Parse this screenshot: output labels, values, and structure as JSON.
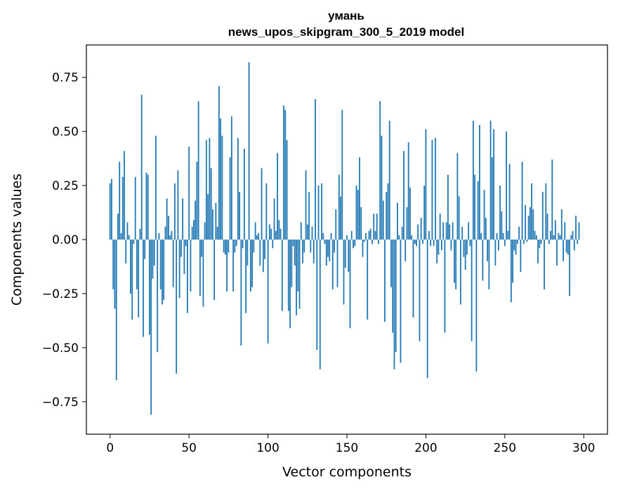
{
  "chart_data": {
    "type": "bar",
    "title": "умань",
    "subtitle": "news_upos_skipgram_300_5_2019 model",
    "xlabel": "Vector components",
    "ylabel": "Components values",
    "xlim": [
      -15,
      315
    ],
    "ylim": [
      -0.9,
      0.9
    ],
    "xticks": [
      0,
      50,
      100,
      150,
      200,
      250,
      300
    ],
    "yticks": [
      -0.75,
      -0.5,
      -0.25,
      0.0,
      0.25,
      0.5,
      0.75
    ],
    "xtick_labels": [
      "0",
      "50",
      "100",
      "150",
      "200",
      "250",
      "300"
    ],
    "ytick_labels": [
      "−0.75",
      "−0.50",
      "−0.25",
      "0.00",
      "0.25",
      "0.50",
      "0.75"
    ],
    "grid": false,
    "bar_color": "#1f77b4",
    "x_start": 0,
    "values": [
      0.26,
      0.28,
      -0.23,
      -0.32,
      -0.65,
      0.12,
      0.36,
      0.03,
      0.29,
      0.41,
      -0.11,
      0.08,
      0.02,
      -0.25,
      -0.37,
      -0.02,
      0.29,
      -0.23,
      -0.36,
      0.05,
      0.67,
      -0.45,
      -0.09,
      0.31,
      0.3,
      -0.44,
      -0.81,
      -0.18,
      -0.12,
      0.48,
      -0.52,
      0.03,
      -0.23,
      -0.3,
      -0.28,
      0.06,
      0.19,
      0.11,
      0.02,
      0.04,
      -0.22,
      0.26,
      -0.62,
      0.32,
      -0.27,
      -0.08,
      0.19,
      -0.16,
      -0.03,
      -0.34,
      0.43,
      -0.24,
      0.06,
      0.09,
      0.18,
      0.36,
      0.64,
      -0.26,
      -0.08,
      -0.31,
      0.08,
      0.46,
      0.21,
      0.47,
      0.33,
      0.14,
      -0.28,
      0.17,
      0.06,
      0.71,
      0.56,
      0.48,
      -0.06,
      -0.07,
      -0.24,
      -0.06,
      0.38,
      0.57,
      -0.24,
      -0.06,
      -0.03,
      0.47,
      0.22,
      -0.49,
      -0.04,
      0.42,
      -0.34,
      -0.12,
      0.82,
      -0.24,
      -0.22,
      -0.06,
      0.08,
      0.02,
      0.03,
      -0.12,
      0.33,
      -0.15,
      -0.09,
      0.26,
      -0.48,
      0.07,
      0.05,
      -0.04,
      0.19,
      0.04,
      0.4,
      0.09,
      0.05,
      -0.33,
      0.62,
      0.6,
      0.46,
      -0.33,
      -0.41,
      -0.22,
      -0.03,
      -0.12,
      -0.35,
      -0.24,
      -0.32,
      0.08,
      -0.11,
      -0.06,
      0.32,
      0.07,
      0.22,
      -0.06,
      0.06,
      -0.11,
      0.65,
      -0.51,
      0.25,
      -0.6,
      0.26,
      0.03,
      -0.02,
      -0.12,
      -0.08,
      -0.1,
      0.03,
      -0.23,
      -0.06,
      0.14,
      -0.22,
      0.3,
      0.2,
      0.6,
      -0.3,
      -0.13,
      0.02,
      -0.15,
      -0.41,
      0.04,
      -0.04,
      -0.03,
      0.25,
      0.23,
      0.38,
      0.15,
      -0.08,
      -0.01,
      0.03,
      -0.37,
      0.04,
      0.05,
      -0.02,
      0.12,
      0.04,
      0.12,
      -0.02,
      0.64,
      0.48,
      0.18,
      -0.38,
      0.22,
      0.26,
      0.55,
      -0.22,
      -0.43,
      -0.6,
      -0.52,
      0.17,
      0.02,
      -0.57,
      0.06,
      0.41,
      -0.1,
      0.15,
      0.45,
      0.24,
      0.02,
      -0.36,
      -0.02,
      -0.03,
      0.07,
      -0.47,
      0.1,
      -0.02,
      0.25,
      0.51,
      -0.64,
      0.04,
      -0.03,
      0.46,
      -0.03,
      0.47,
      -0.11,
      -0.07,
      0.12,
      -0.05,
      0.08,
      -0.43,
      0.08,
      0.3,
      0.07,
      -0.05,
      0.08,
      -0.2,
      -0.23,
      0.4,
      0.2,
      -0.3,
      0.06,
      -0.08,
      -0.14,
      -0.07,
      0.08,
      -0.03,
      -0.47,
      0.55,
      0.3,
      -0.61,
      0.27,
      0.53,
      0.03,
      -0.19,
      0.23,
      0.1,
      -0.1,
      -0.23,
      0.55,
      0.38,
      0.51,
      -0.12,
      0.03,
      -0.05,
      0.25,
      0.13,
      0.03,
      -0.03,
      0.5,
      0.04,
      0.35,
      -0.29,
      -0.2,
      -0.05,
      -0.07,
      -0.02,
      0.06,
      -0.15,
      0.36,
      -0.02,
      0.16,
      -0.01,
      0.11,
      0.15,
      0.26,
      0.14,
      0.04,
      0.02,
      -0.11,
      -0.04,
      -0.02,
      0.22,
      -0.23,
      0.26,
      0.12,
      -0.02,
      0.04,
      0.37,
      0.02,
      0.09,
      -0.12,
      0.03,
      0.02,
      0.14,
      -0.1,
      0.08,
      -0.06,
      -0.07,
      -0.26,
      0.02,
      0.04,
      -0.05,
      0.11,
      -0.02,
      0.08
    ]
  }
}
